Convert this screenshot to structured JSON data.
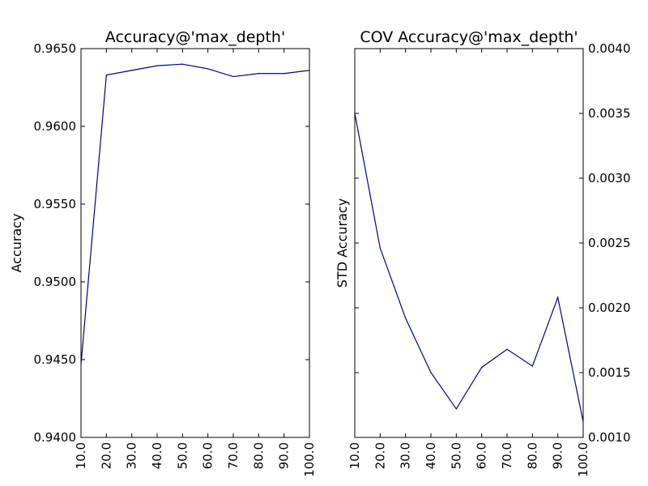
{
  "chart_data": [
    {
      "type": "line",
      "title": "Accuracy@'max_depth'",
      "xlabel": "",
      "ylabel": "Accuracy",
      "y_axis_side": "left",
      "x": [
        10.0,
        20.0,
        30.0,
        40.0,
        50.0,
        60.0,
        70.0,
        80.0,
        90.0,
        100.0
      ],
      "x_tick_labels": [
        "10.0",
        "20.0",
        "30.0",
        "40.0",
        "50.0",
        "60.0",
        "70.0",
        "80.0",
        "90.0",
        "100.0"
      ],
      "xlim": [
        10.0,
        100.0
      ],
      "ylim": [
        0.94,
        0.965
      ],
      "y_ticks": [
        0.94,
        0.945,
        0.95,
        0.955,
        0.96,
        0.965
      ],
      "y_tick_labels": [
        "0.9400",
        "0.9450",
        "0.9500",
        "0.9550",
        "0.9600",
        "0.9650"
      ],
      "grid": false,
      "series": [
        {
          "color": "#00008b",
          "values": [
            0.9447,
            0.9633,
            0.9636,
            0.9639,
            0.964,
            0.9637,
            0.9632,
            0.9634,
            0.9634,
            0.9636
          ]
        }
      ]
    },
    {
      "type": "line",
      "title": "COV Accuracy@'max_depth'",
      "xlabel": "",
      "ylabel": "STD Accuracy",
      "y_axis_side": "right",
      "x": [
        10.0,
        20.0,
        30.0,
        40.0,
        50.0,
        60.0,
        70.0,
        80.0,
        90.0,
        100.0
      ],
      "x_tick_labels": [
        "10.0",
        "20.0",
        "30.0",
        "40.0",
        "50.0",
        "60.0",
        "70.0",
        "80.0",
        "90.0",
        "100.0"
      ],
      "xlim": [
        10.0,
        100.0
      ],
      "ylim": [
        0.001,
        0.004
      ],
      "y_ticks": [
        0.001,
        0.0015,
        0.002,
        0.0025,
        0.003,
        0.0035,
        0.004
      ],
      "y_tick_labels": [
        "0.0010",
        "0.0015",
        "0.0020",
        "0.0025",
        "0.0030",
        "0.0035",
        "0.0040"
      ],
      "grid": false,
      "series": [
        {
          "color": "#00008b",
          "values": [
            0.0035,
            0.00246,
            0.00192,
            0.0015,
            0.00122,
            0.00154,
            0.00168,
            0.00155,
            0.00208,
            0.00112
          ]
        }
      ]
    }
  ]
}
